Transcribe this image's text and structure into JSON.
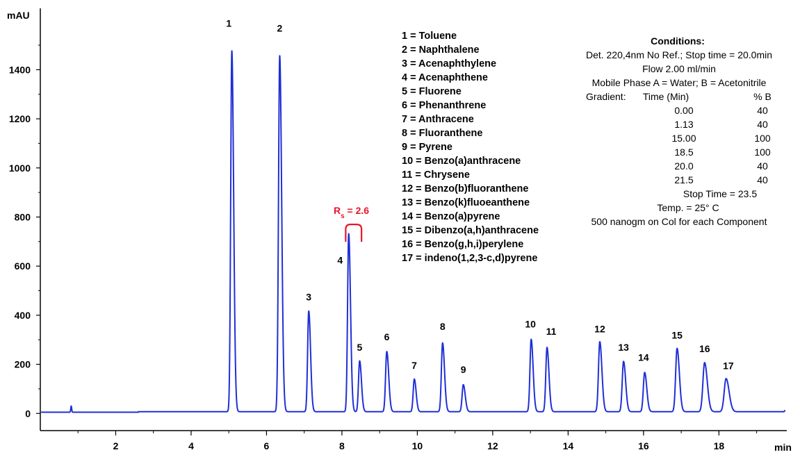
{
  "chart_data": {
    "type": "line",
    "title": "",
    "xlabel": "",
    "ylabel": "",
    "x_unit": "min",
    "y_unit": "mAU",
    "xlim": [
      0,
      19.8
    ],
    "ylim": [
      -70,
      1650
    ],
    "x_ticks": [
      2,
      4,
      6,
      8,
      10,
      12,
      14,
      16,
      18
    ],
    "y_ticks": [
      0,
      200,
      400,
      600,
      800,
      1000,
      1200,
      1400
    ],
    "grid": false,
    "line_color": "#1f2fd6",
    "baseline": 5,
    "peaks": [
      {
        "label": "1",
        "rt": 5.08,
        "height": 1470,
        "width": 0.03
      },
      {
        "label": "2",
        "rt": 6.35,
        "height": 1450,
        "width": 0.032
      },
      {
        "label": "3",
        "rt": 7.12,
        "height": 410,
        "width": 0.03
      },
      {
        "label": "4",
        "rt": 8.18,
        "height": 725,
        "width": 0.03
      },
      {
        "label": "5",
        "rt": 8.47,
        "height": 207,
        "width": 0.03
      },
      {
        "label": "6",
        "rt": 9.19,
        "height": 245,
        "width": 0.032
      },
      {
        "label": "7",
        "rt": 9.92,
        "height": 133,
        "width": 0.03
      },
      {
        "label": "8",
        "rt": 10.67,
        "height": 280,
        "width": 0.032
      },
      {
        "label": "9",
        "rt": 11.22,
        "height": 110,
        "width": 0.032
      },
      {
        "label": "10",
        "rt": 13.02,
        "height": 295,
        "width": 0.032
      },
      {
        "label": "11",
        "rt": 13.44,
        "height": 262,
        "width": 0.032
      },
      {
        "label": "12",
        "rt": 14.84,
        "height": 285,
        "width": 0.035
      },
      {
        "label": "13",
        "rt": 15.47,
        "height": 205,
        "width": 0.035
      },
      {
        "label": "14",
        "rt": 16.03,
        "height": 160,
        "width": 0.035
      },
      {
        "label": "15",
        "rt": 16.89,
        "height": 258,
        "width": 0.038
      },
      {
        "label": "16",
        "rt": 17.62,
        "height": 200,
        "width": 0.045
      },
      {
        "label": "17",
        "rt": 18.19,
        "height": 135,
        "width": 0.05
      }
    ],
    "minor_peaks": [
      {
        "rt": 0.82,
        "height": 25,
        "width": 0.012
      },
      {
        "rt": 19.77,
        "height": 20,
        "width": 0.015
      }
    ],
    "peak_labels": [
      {
        "text": "1",
        "x": 5.0,
        "y": 1575
      },
      {
        "text": "2",
        "x": 6.35,
        "y": 1555
      },
      {
        "text": "3",
        "x": 7.12,
        "y": 460
      },
      {
        "text": "4",
        "x": 7.95,
        "y": 610
      },
      {
        "text": "5",
        "x": 8.47,
        "y": 255
      },
      {
        "text": "6",
        "x": 9.19,
        "y": 298
      },
      {
        "text": "7",
        "x": 9.92,
        "y": 182
      },
      {
        "text": "8",
        "x": 10.67,
        "y": 340
      },
      {
        "text": "9",
        "x": 11.22,
        "y": 165
      },
      {
        "text": "10",
        "x": 13.0,
        "y": 350
      },
      {
        "text": "11",
        "x": 13.55,
        "y": 320
      },
      {
        "text": "12",
        "x": 14.84,
        "y": 330
      },
      {
        "text": "13",
        "x": 15.47,
        "y": 255
      },
      {
        "text": "14",
        "x": 16.0,
        "y": 215
      },
      {
        "text": "15",
        "x": 16.89,
        "y": 305
      },
      {
        "text": "16",
        "x": 17.62,
        "y": 250
      },
      {
        "text": "17",
        "x": 18.25,
        "y": 180
      }
    ],
    "resolution_annotation": {
      "label": "R",
      "subscript": "s",
      "value": "= 2.6",
      "color": "#e8152a",
      "x_from": 8.1,
      "x_to": 8.52,
      "y": 750
    }
  },
  "legend": [
    "1 = Toluene",
    "2 = Naphthalene",
    "3 = Acenaphthylene",
    "4 = Acenaphthene",
    "5 = Fluorene",
    "6 = Phenanthrene",
    "7 = Anthracene",
    "8 = Fluoranthene",
    "9 = Pyrene",
    "10 = Benzo(a)anthracene",
    "11 = Chrysene",
    "12 = Benzo(b)fluoranthene",
    "13 = Benzo(k)fluoeanthene",
    "14 = Benzo(a)pyrene",
    "15 = Dibenzo(a,h)anthracene",
    "16 = Benzo(g,h,i)perylene",
    "17 = indeno(1,2,3-c,d)pyrene"
  ],
  "conditions": {
    "title": "Conditions:",
    "lines": [
      "Det. 220,4nm No Ref.; Stop time = 20.0min",
      "Flow 2.00 ml/min",
      "Mobile Phase A = Water; B = Acetonitrile"
    ],
    "gradient_label": "Gradient:",
    "time_header": "Time (Min)",
    "b_header": "% B",
    "gradient_rows": [
      {
        "time": "0.00",
        "b": "40"
      },
      {
        "time": "1.13",
        "b": "40"
      },
      {
        "time": "15.00",
        "b": "100"
      },
      {
        "time": "18.5",
        "b": "100"
      },
      {
        "time": "20.0",
        "b": "40"
      },
      {
        "time": "21.5",
        "b": "40"
      }
    ],
    "footer_lines": [
      "Stop Time = 23.5",
      "Temp. = 25° C",
      "500 nanogm on Col for each Component"
    ]
  }
}
